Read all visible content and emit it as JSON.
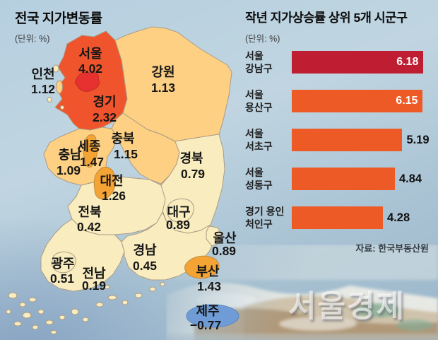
{
  "left_panel": {
    "title": "전국 지가변동률",
    "unit": "(단위: %)"
  },
  "map": {
    "island_color": "#f9edbf",
    "border_color": "#ab9c84",
    "sea_color": "#9cb6ca",
    "seoul_name_color": "#ffffff",
    "seoul_value_color": "#ffd83a",
    "regions": [
      {
        "key": "gyeonggi",
        "name": "경기",
        "value": "2.32",
        "color": "#f0542c"
      },
      {
        "key": "seoul",
        "name": "서울",
        "value": "4.02",
        "color": "#e73130"
      },
      {
        "key": "incheon",
        "name": "인천",
        "value": "1.12",
        "color": "#fdd084"
      },
      {
        "key": "gangwon",
        "name": "강원",
        "value": "1.13",
        "color": "#fdd084"
      },
      {
        "key": "chungbuk",
        "name": "충북",
        "value": "1.15",
        "color": "#fdd084"
      },
      {
        "key": "sejong",
        "name": "세종",
        "value": "1.47",
        "color": "#f4a434"
      },
      {
        "key": "chungnam",
        "name": "충남",
        "value": "1.09",
        "color": "#fdd084"
      },
      {
        "key": "daejeon",
        "name": "대전",
        "value": "1.26",
        "color": "#f4a434"
      },
      {
        "key": "gyeongbuk",
        "name": "경북",
        "value": "0.79",
        "color": "#f9edbf"
      },
      {
        "key": "jeonbuk",
        "name": "전북",
        "value": "0.42",
        "color": "#f9edbf"
      },
      {
        "key": "daegu",
        "name": "대구",
        "value": "0.89",
        "color": "#f9edbf"
      },
      {
        "key": "ulsan",
        "name": "울산",
        "value": "0.89",
        "color": "#f9edbf"
      },
      {
        "key": "gyeongnam",
        "name": "경남",
        "value": "0.45",
        "color": "#f9edbf"
      },
      {
        "key": "gwangju",
        "name": "광주",
        "value": "0.51",
        "color": "#f9edbf"
      },
      {
        "key": "jeonnam",
        "name": "전남",
        "value": "0.19",
        "color": "#f9edbf"
      },
      {
        "key": "busan",
        "name": "부산",
        "value": "1.43",
        "color": "#f4a434"
      },
      {
        "key": "jeju",
        "name": "제주",
        "value": "−0.77",
        "color": "#6f9cd6"
      }
    ]
  },
  "chart_data": {
    "type": "bar",
    "orientation": "horizontal",
    "title": "작년 지가상승률 상위 5개 시군구",
    "unit": "(단위: %)",
    "source": "자료: 한국부동산원",
    "categories": [
      "서울 강남구",
      "서울 용산구",
      "서울 서초구",
      "서울 성동구",
      "경기 용인 처인구"
    ],
    "values": [
      6.18,
      6.15,
      5.19,
      4.84,
      4.28
    ],
    "xlim": [
      0,
      6.5
    ],
    "grid": false,
    "legend": "none",
    "rows": [
      {
        "line1": "서울",
        "line2": "강남구",
        "value": 6.18,
        "display": "6.18",
        "color": "#bf1e32",
        "value_inside": true
      },
      {
        "line1": "서울",
        "line2": "용산구",
        "value": 6.15,
        "display": "6.15",
        "color": "#ee5a26",
        "value_inside": true
      },
      {
        "line1": "서울",
        "line2": "서초구",
        "value": 5.19,
        "display": "5.19",
        "color": "#ee5a26",
        "value_inside": false
      },
      {
        "line1": "서울",
        "line2": "성동구",
        "value": 4.84,
        "display": "4.84",
        "color": "#ee5a26",
        "value_inside": false
      },
      {
        "line1": "경기 용인",
        "line2": "처인구",
        "value": 4.28,
        "display": "4.28",
        "color": "#ee5a26",
        "value_inside": false
      }
    ]
  },
  "watermark": "서울경제"
}
